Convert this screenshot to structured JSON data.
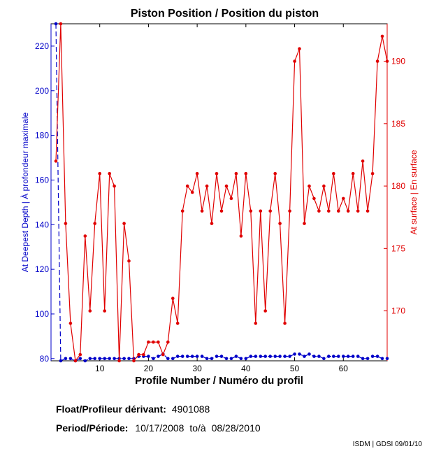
{
  "chart_data": {
    "type": "line",
    "title": "Piston Position / Position du piston",
    "xlabel": "Profile Number / Numéro du profil",
    "ylabel_left": "At Deepest Depth | À profondeur maximale",
    "ylabel_right": "At surface | En surface",
    "xlim": [
      0,
      69
    ],
    "xticks": [
      10,
      20,
      30,
      40,
      50,
      60
    ],
    "ylim_left": [
      79,
      230
    ],
    "yticks_left": [
      80,
      100,
      120,
      140,
      160,
      180,
      200,
      220
    ],
    "ylim_right": [
      166,
      193
    ],
    "yticks_right": [
      170,
      175,
      180,
      185,
      190
    ],
    "grid": false,
    "colors": {
      "left_axis": "#0000c8",
      "right_axis": "#e00000"
    },
    "series": [
      {
        "axis": "left",
        "color": "#0000c8",
        "style": "dashed",
        "x": [
          1,
          2,
          3,
          4,
          5,
          6,
          7,
          8,
          9,
          10,
          11,
          12,
          13,
          14,
          15,
          16,
          17,
          18,
          19,
          20,
          21,
          22,
          23,
          24,
          25,
          26,
          27,
          28,
          29,
          30,
          31,
          32,
          33,
          34,
          35,
          36,
          37,
          38,
          39,
          40,
          41,
          42,
          43,
          44,
          45,
          46,
          47,
          48,
          49,
          50,
          51,
          52,
          53,
          54,
          55,
          56,
          57,
          58,
          59,
          60,
          61,
          62,
          63,
          64,
          65,
          66,
          67,
          68,
          69
        ],
        "values": [
          230,
          79,
          80,
          80,
          79,
          80,
          79,
          80,
          80,
          80,
          80,
          80,
          80,
          80,
          80,
          80,
          80,
          81,
          81,
          81,
          80,
          81,
          82,
          80,
          80,
          81,
          81,
          81,
          81,
          81,
          81,
          80,
          80,
          81,
          81,
          80,
          80,
          81,
          80,
          80,
          81,
          81,
          81,
          81,
          81,
          81,
          81,
          81,
          81,
          82,
          82,
          81,
          82,
          81,
          81,
          80,
          81,
          81,
          81,
          81,
          81,
          81,
          81,
          80,
          80,
          81,
          81,
          80,
          80
        ]
      },
      {
        "axis": "right",
        "color": "#e00000",
        "style": "solid",
        "x": [
          1,
          2,
          3,
          4,
          5,
          6,
          7,
          8,
          9,
          10,
          11,
          12,
          13,
          14,
          15,
          16,
          17,
          18,
          19,
          20,
          21,
          22,
          23,
          24,
          25,
          26,
          27,
          28,
          29,
          30,
          31,
          32,
          33,
          34,
          35,
          36,
          37,
          38,
          39,
          40,
          41,
          42,
          43,
          44,
          45,
          46,
          47,
          48,
          49,
          50,
          51,
          52,
          53,
          54,
          55,
          56,
          57,
          58,
          59,
          60,
          61,
          62,
          63,
          64,
          65,
          66,
          67,
          68,
          69
        ],
        "values": [
          182,
          193,
          177,
          169,
          166,
          166.5,
          176,
          170,
          177,
          181,
          170,
          181,
          180,
          166,
          177,
          174,
          166,
          166.5,
          166.5,
          167.5,
          167.5,
          167.5,
          166.5,
          167.5,
          171,
          169,
          178,
          180,
          179.5,
          181,
          178,
          180,
          177,
          181,
          178,
          180,
          179,
          181,
          176,
          181,
          178,
          169,
          178,
          170,
          178,
          181,
          177,
          169,
          178,
          190,
          191,
          177,
          180,
          179,
          178,
          180,
          178,
          181,
          178,
          179,
          178,
          181,
          178,
          182,
          178,
          181,
          190,
          192,
          190
        ]
      }
    ]
  },
  "info": {
    "float_label": "Float/Profileur dérivant:",
    "float_value": "4901088",
    "period_label": "Period/Période:",
    "period_start": "10/17/2008",
    "period_sep": "to/à",
    "period_end": "08/28/2010"
  },
  "credit": "ISDM | GDSI 09/01/10"
}
